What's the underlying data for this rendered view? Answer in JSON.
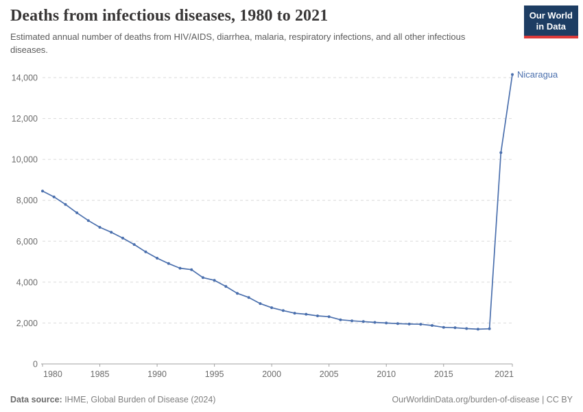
{
  "header": {
    "title": "Deaths from infectious diseases, 1980 to 2021",
    "subtitle": "Estimated annual number of deaths from HIV/AIDS, diarrhea, malaria, respiratory infections, and all other infectious diseases."
  },
  "logo": {
    "line1": "Our World",
    "line2": "in Data",
    "bg_color": "#1d3d63",
    "stripe_color": "#dc3a3a",
    "text_color": "#ffffff"
  },
  "footer": {
    "source_label": "Data source:",
    "source_text": " IHME, Global Burden of Disease (2024)",
    "link_text": "OurWorldinData.org/burden-of-disease",
    "license_text": " | CC BY"
  },
  "chart_data": {
    "type": "line",
    "title": "Deaths from infectious diseases, 1980 to 2021",
    "entity_label": "Nicaragua",
    "line_color": "#4a6fad",
    "grid_color": "#dadada",
    "axis_color": "#a0a0a0",
    "tick_text_color": "#6b6b6b",
    "grid": "horizontal-dashed",
    "legend_position": "end-of-line",
    "xlim": [
      1980,
      2021
    ],
    "ylim": [
      0,
      14000
    ],
    "x_ticks": [
      1980,
      1985,
      1990,
      1995,
      2000,
      2005,
      2010,
      2015,
      2021
    ],
    "y_ticks": [
      0,
      2000,
      4000,
      6000,
      8000,
      10000,
      12000,
      14000
    ],
    "x": [
      1980,
      1981,
      1982,
      1983,
      1984,
      1985,
      1986,
      1987,
      1988,
      1989,
      1990,
      1991,
      1992,
      1993,
      1994,
      1995,
      1996,
      1997,
      1998,
      1999,
      2000,
      2001,
      2002,
      2003,
      2004,
      2005,
      2006,
      2007,
      2008,
      2009,
      2010,
      2011,
      2012,
      2013,
      2014,
      2015,
      2016,
      2017,
      2018,
      2019,
      2020,
      2021
    ],
    "series": [
      {
        "name": "Nicaragua",
        "values": [
          8450,
          8170,
          7800,
          7390,
          7010,
          6680,
          6440,
          6150,
          5840,
          5480,
          5170,
          4910,
          4680,
          4610,
          4220,
          4090,
          3790,
          3450,
          3250,
          2950,
          2750,
          2610,
          2480,
          2430,
          2350,
          2310,
          2160,
          2110,
          2070,
          2030,
          2000,
          1970,
          1950,
          1940,
          1880,
          1790,
          1770,
          1730,
          1700,
          1720,
          10330,
          14150
        ]
      }
    ]
  }
}
